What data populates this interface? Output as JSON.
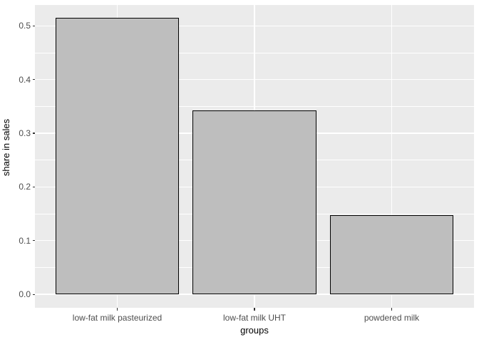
{
  "figure": {
    "background": "#FFFFFF",
    "panel_background": "#EBEBEB",
    "grid_color": "#FFFFFF",
    "bar_fill": "#BEBEBE",
    "bar_stroke": "#000000",
    "tick_label_color": "#4D4D4D",
    "tick_color": "#333333",
    "title_color": "#000000"
  },
  "chart_data": {
    "type": "bar",
    "title": "",
    "xlabel": "groups",
    "ylabel": "share in sales",
    "categories": [
      "low-fat milk pasteurized",
      "low-fat milk UHT",
      "powdered milk"
    ],
    "values": [
      0.515,
      0.343,
      0.148
    ],
    "ylim": [
      -0.025,
      0.539
    ],
    "yticks_major": [
      0.0,
      0.1,
      0.2,
      0.3,
      0.4,
      0.5
    ],
    "ytick_labels": [
      "0.0",
      "0.1",
      "0.2",
      "0.3",
      "0.4",
      "0.5"
    ],
    "yticks_minor": [
      0.05,
      0.15,
      0.25,
      0.35,
      0.45
    ],
    "grid": true,
    "legend": "none",
    "bar_width_fraction": 0.9
  }
}
